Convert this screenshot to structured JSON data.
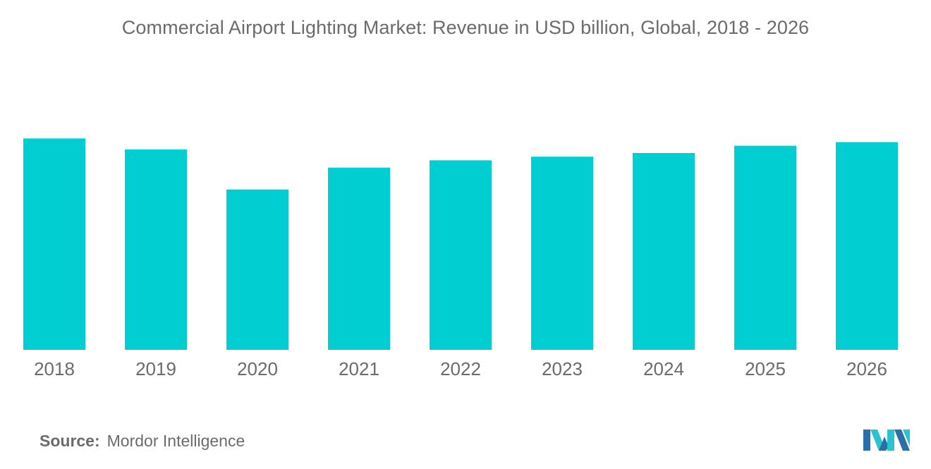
{
  "colors": {
    "bar": "#00ced1",
    "text": "#6b6b6b",
    "logo_dark": "#2a6fa8",
    "logo_light": "#29c4cf"
  },
  "source": {
    "label": "Source:",
    "value": "Mordor Intelligence"
  },
  "logo": {
    "icon": "mordor-intelligence-logo-icon"
  },
  "chart_data": {
    "type": "bar",
    "title": "Commercial Airport Lighting Market: Revenue in USD billion, Global, 2018 - 2026",
    "categories": [
      "2018",
      "2019",
      "2020",
      "2021",
      "2022",
      "2023",
      "2024",
      "2025",
      "2026"
    ],
    "values": [
      0.58,
      0.55,
      0.44,
      0.5,
      0.52,
      0.53,
      0.54,
      0.56,
      0.57
    ],
    "xlabel": "",
    "ylabel": "",
    "ylim": [
      0,
      0.6
    ],
    "grid": false,
    "legend": "none"
  }
}
